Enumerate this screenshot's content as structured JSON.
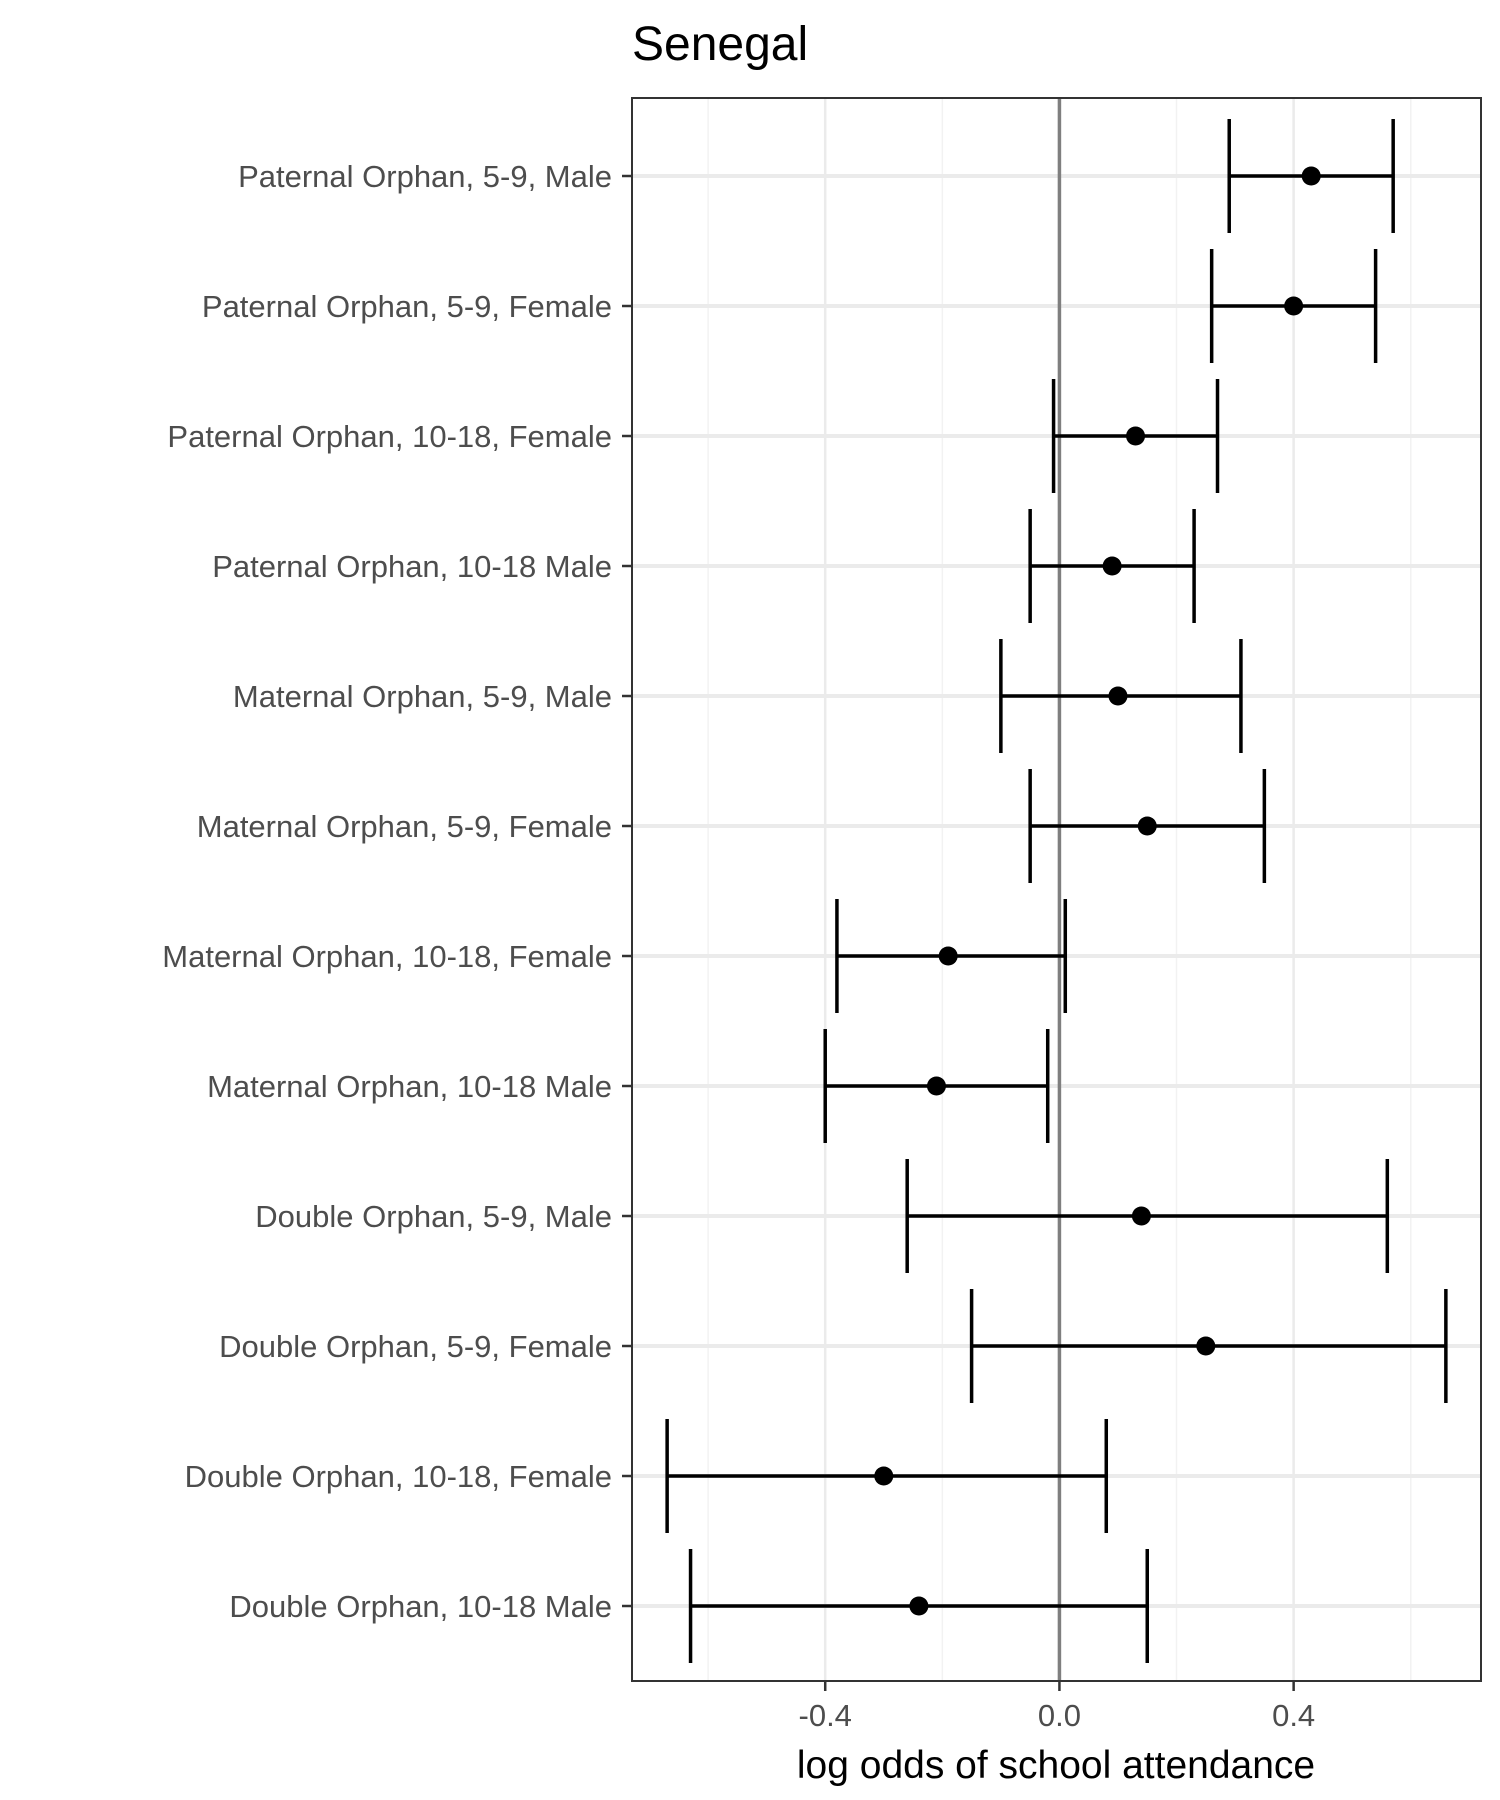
{
  "chart_data": {
    "type": "scatter",
    "subtype": "forest-plot-with-error-bars",
    "title": "Senegal",
    "xlabel": "log odds of school attendance",
    "ylabel": "",
    "xlim": [
      -0.73,
      0.72
    ],
    "x_ticks": [
      -0.4,
      0.0,
      0.4
    ],
    "x_tick_labels": [
      "-0.4",
      "0.0",
      "0.4"
    ],
    "reference_line_x": 0.0,
    "grid": true,
    "legend": "none",
    "categories": [
      "Paternal Orphan, 5-9, Male",
      "Paternal Orphan, 5-9, Female",
      "Paternal Orphan, 10-18, Female",
      "Paternal Orphan, 10-18 Male",
      "Maternal Orphan, 5-9, Male",
      "Maternal Orphan, 5-9, Female",
      "Maternal Orphan, 10-18, Female",
      "Maternal Orphan, 10-18 Male",
      "Double Orphan, 5-9, Male",
      "Double Orphan, 5-9, Female",
      "Double Orphan, 10-18, Female",
      "Double Orphan, 10-18 Male"
    ],
    "estimates": [
      0.43,
      0.4,
      0.13,
      0.09,
      0.1,
      0.15,
      -0.19,
      -0.21,
      0.14,
      0.25,
      -0.3,
      -0.24
    ],
    "lower": [
      0.29,
      0.26,
      -0.01,
      -0.05,
      -0.1,
      -0.05,
      -0.38,
      -0.4,
      -0.26,
      -0.15,
      -0.67,
      -0.63
    ],
    "upper": [
      0.57,
      0.54,
      0.27,
      0.23,
      0.31,
      0.35,
      0.01,
      -0.02,
      0.56,
      0.66,
      0.08,
      0.15
    ],
    "colors": {
      "points": "#000000",
      "error_bars": "#000000",
      "reference_line": "#7f7f7f",
      "grid_major": "#ebebeb",
      "grid_minor": "#f2f2f2",
      "panel_border": "#333333",
      "tick_label": "#4d4d4d"
    }
  }
}
